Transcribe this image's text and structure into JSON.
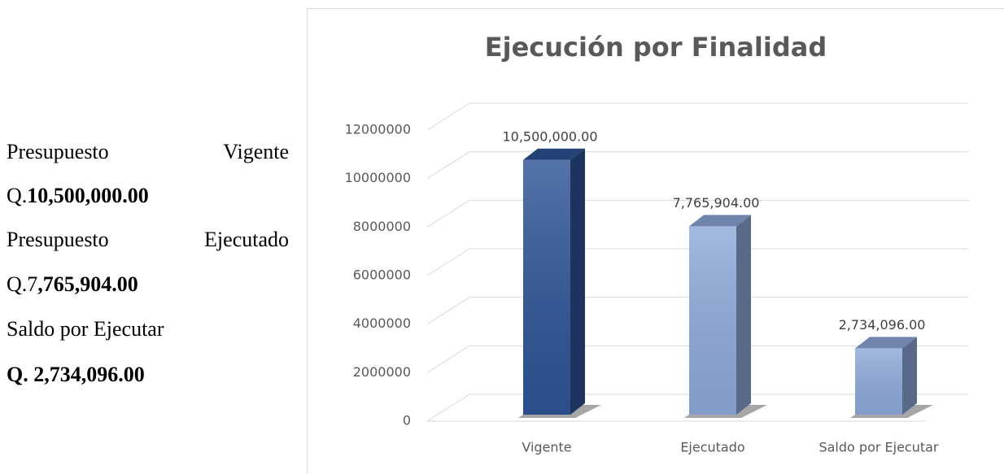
{
  "text": {
    "lines": [
      [
        {
          "text": "Presupuesto",
          "bold": false
        },
        {
          "text": "Vigente",
          "bold": false
        }
      ],
      [
        {
          "text": "Q.",
          "bold": false
        },
        {
          "text": "10,500,000.00",
          "bold": true
        }
      ],
      [
        {
          "text": "Presupuesto",
          "bold": false
        },
        {
          "text": "Ejecutado",
          "bold": false
        }
      ],
      [
        {
          "text": "Q.7",
          "bold": false
        },
        {
          "text": ",765,904.00",
          "bold": true
        }
      ],
      [
        {
          "text": "Saldo por Ejecutar",
          "bold": false
        }
      ],
      [
        {
          "text": "Q. 2,734,096.00",
          "bold": true
        }
      ]
    ]
  },
  "chart_data": {
    "type": "bar3d",
    "title": "Ejecución por Finalidad",
    "categories": [
      "Vigente",
      "Ejecutado",
      "Saldo por Ejecutar"
    ],
    "values": [
      10500000,
      7765904,
      2734096
    ],
    "value_labels": [
      "10,500,000.00",
      "7,765,904.00",
      "2,734,096.00"
    ],
    "colors": [
      "#2f5597",
      "#8faadc",
      "#8faadc"
    ],
    "ylim": [
      0,
      12000000
    ],
    "yticks": [
      0,
      2000000,
      4000000,
      6000000,
      8000000,
      10000000,
      12000000
    ],
    "grid": true
  }
}
